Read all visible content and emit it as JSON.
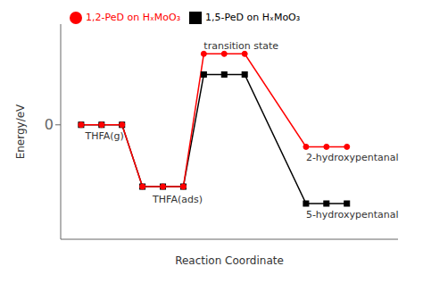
{
  "chart_data": {
    "type": "line",
    "xlabel": "Reaction Coordinate",
    "ylabel": "Energy/eV",
    "xlim": [
      0.0,
      16.5
    ],
    "ylim": [
      -2.5,
      2.2
    ],
    "yticks": [
      0
    ],
    "tick_labels": "y",
    "grid": false,
    "legend": "upper left",
    "series": [
      {
        "name": "1,5-PeD on HₓMoO₃",
        "color": "black",
        "marker": "square",
        "x": [
          1,
          2,
          3,
          4,
          5,
          6,
          7,
          8,
          9,
          12,
          13,
          14
        ],
        "values": [
          0.0,
          0.0,
          0.0,
          -1.35,
          -1.35,
          -1.35,
          1.1,
          1.1,
          1.1,
          -1.72,
          -1.72,
          -1.72
        ]
      },
      {
        "name": "1,2-PeD on HₓMoO₃",
        "color": "red",
        "marker": "circle",
        "x": [
          1,
          2,
          3,
          4,
          5,
          6,
          7,
          8,
          9,
          12,
          13,
          14
        ],
        "values": [
          0.0,
          0.0,
          0.0,
          -1.35,
          -1.35,
          -1.35,
          1.55,
          1.55,
          1.55,
          -0.48,
          -0.48,
          -0.48
        ]
      }
    ],
    "annotations": [
      {
        "text": "THFA(g)",
        "x": 1.2,
        "y": -0.15
      },
      {
        "text": "THFA(ads)",
        "x": 4.5,
        "y": -1.55
      },
      {
        "text": "transition state",
        "x": 7.0,
        "y": 1.65
      },
      {
        "text": "2-hydroxypentanal",
        "x": 12.0,
        "y": -0.62
      },
      {
        "text": "5-hydroxypentanal",
        "x": 12.0,
        "y": -1.88
      }
    ]
  }
}
